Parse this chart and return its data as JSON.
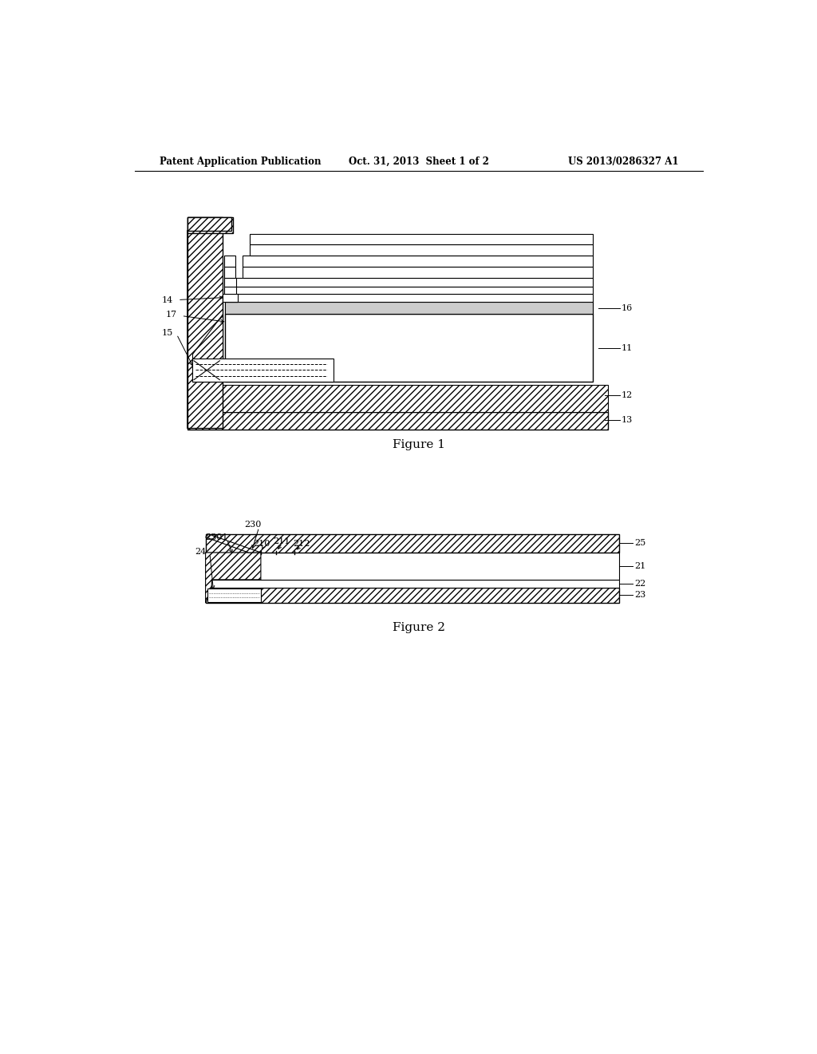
{
  "bg_color": "#ffffff",
  "header_left": "Patent Application Publication",
  "header_center": "Oct. 31, 2013  Sheet 1 of 2",
  "header_right": "US 2013/0286327 A1",
  "fig1_caption": "Figure 1",
  "fig2_caption": "Figure 2"
}
